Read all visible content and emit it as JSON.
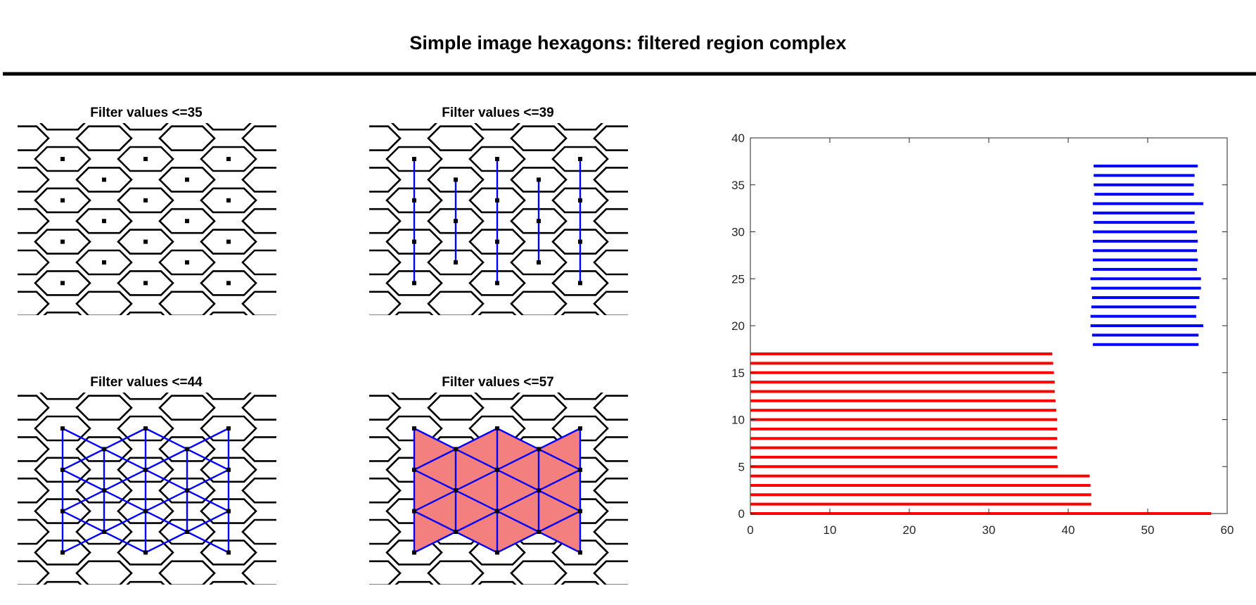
{
  "figure": {
    "title": "Simple image hexagons: filtered region complex"
  },
  "panels": [
    {
      "title": "Filter values <=35",
      "show_edges": false,
      "show_faces": false
    },
    {
      "title": "Filter values <=39",
      "show_edges": "vertical",
      "show_faces": false
    },
    {
      "title": "Filter values <=44",
      "show_edges": "all",
      "show_faces": false
    },
    {
      "title": "Filter values <=57",
      "show_edges": "all",
      "show_faces": true
    }
  ],
  "colors": {
    "hexagon_edges": "#000000",
    "complex_edges": "#0000ff",
    "complex_faces": "#f47f7f",
    "vertices": "#000000",
    "h0_bars": "#ff0000",
    "h1_bars": "#0000ff",
    "title_rule": "#000000"
  },
  "chart_data": {
    "type": "bar",
    "orientation": "horizontal",
    "title": "",
    "xlabel": "",
    "ylabel": "",
    "xlim": [
      0,
      60
    ],
    "ylim": [
      0,
      40
    ],
    "xticks": [
      0,
      10,
      20,
      30,
      40,
      50,
      60
    ],
    "yticks": [
      0,
      5,
      10,
      15,
      20,
      25,
      30,
      35,
      40
    ],
    "grid": false,
    "legend": "none",
    "series": [
      {
        "color": "#ff0000",
        "bars": [
          {
            "y": 0,
            "start": 0,
            "end": 58.0
          },
          {
            "y": 1,
            "start": 0,
            "end": 42.9
          },
          {
            "y": 2,
            "start": 0,
            "end": 42.9
          },
          {
            "y": 3,
            "start": 0,
            "end": 42.8
          },
          {
            "y": 4,
            "start": 0,
            "end": 42.7
          },
          {
            "y": 5,
            "start": 0,
            "end": 38.7
          },
          {
            "y": 6,
            "start": 0,
            "end": 38.6
          },
          {
            "y": 7,
            "start": 0,
            "end": 38.6
          },
          {
            "y": 8,
            "start": 0,
            "end": 38.6
          },
          {
            "y": 9,
            "start": 0,
            "end": 38.6
          },
          {
            "y": 10,
            "start": 0,
            "end": 38.6
          },
          {
            "y": 11,
            "start": 0,
            "end": 38.5
          },
          {
            "y": 12,
            "start": 0,
            "end": 38.4
          },
          {
            "y": 13,
            "start": 0,
            "end": 38.3
          },
          {
            "y": 14,
            "start": 0,
            "end": 38.3
          },
          {
            "y": 15,
            "start": 0,
            "end": 38.2
          },
          {
            "y": 16,
            "start": 0,
            "end": 38.1
          },
          {
            "y": 17,
            "start": 0,
            "end": 38.0
          }
        ]
      },
      {
        "color": "#0000ff",
        "bars": [
          {
            "y": 18,
            "start": 43.1,
            "end": 56.4
          },
          {
            "y": 19,
            "start": 43.0,
            "end": 56.4
          },
          {
            "y": 20,
            "start": 42.8,
            "end": 57.0
          },
          {
            "y": 21,
            "start": 42.8,
            "end": 56.1
          },
          {
            "y": 22,
            "start": 42.9,
            "end": 56.1
          },
          {
            "y": 23,
            "start": 43.0,
            "end": 56.5
          },
          {
            "y": 24,
            "start": 42.9,
            "end": 56.7
          },
          {
            "y": 25,
            "start": 42.8,
            "end": 56.7
          },
          {
            "y": 26,
            "start": 43.1,
            "end": 56.2
          },
          {
            "y": 27,
            "start": 43.1,
            "end": 56.3
          },
          {
            "y": 28,
            "start": 43.1,
            "end": 56.2
          },
          {
            "y": 29,
            "start": 43.1,
            "end": 56.3
          },
          {
            "y": 30,
            "start": 43.1,
            "end": 56.2
          },
          {
            "y": 31,
            "start": 43.2,
            "end": 55.9
          },
          {
            "y": 32,
            "start": 43.1,
            "end": 55.9
          },
          {
            "y": 33,
            "start": 43.1,
            "end": 57.0
          },
          {
            "y": 34,
            "start": 43.3,
            "end": 55.8
          },
          {
            "y": 35,
            "start": 43.2,
            "end": 55.8
          },
          {
            "y": 36,
            "start": 43.2,
            "end": 55.9
          },
          {
            "y": 37,
            "start": 43.2,
            "end": 56.3
          }
        ]
      }
    ]
  }
}
